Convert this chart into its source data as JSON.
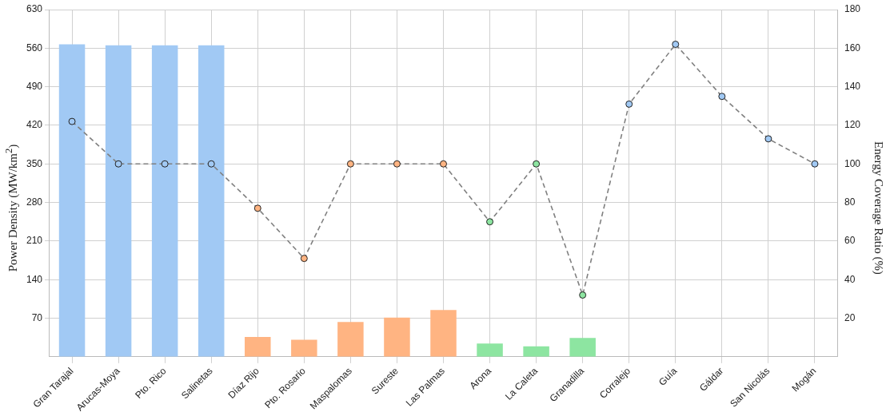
{
  "chart_data": {
    "type": "bar",
    "ylabel": "Power Density (MW/km$^{2}$)",
    "y2label": "Energy Coverage Ratio (%)",
    "categories": [
      "Gran Tarajal",
      "Arucas-Moya",
      "Pto. Rico",
      "Salinetas",
      "Díaz Rijo",
      "Pto. Rosario",
      "Maspalomas",
      "Sureste",
      "Las Palmas",
      "Arona",
      "La Caleta",
      "Granadilla",
      "Corralejo",
      "Guía",
      "Gáldar",
      "San Nicolás",
      "Mogán"
    ],
    "series": [
      {
        "colors": [
          "#a1c9f4",
          "#a1c9f4",
          "#a1c9f4",
          "#a1c9f4",
          "#ffb482",
          "#ffb482",
          "#ffb482",
          "#ffb482",
          "#ffb482",
          "#8de5a1",
          "#8de5a1",
          "#8de5a1",
          "#a1c9f4",
          "#a1c9f4",
          "#a1c9f4",
          "#a1c9f4",
          "#a1c9f4"
        ],
        "values": [
          567,
          565,
          565,
          565,
          36,
          31,
          63,
          71,
          85,
          24,
          19,
          34,
          null,
          null,
          null,
          null,
          null
        ]
      },
      {
        "type": "line",
        "axis": "y2",
        "color": "#808080",
        "colors": [
          "#a1c9f4",
          "#a1c9f4",
          "#a1c9f4",
          "#a1c9f4",
          "#ffb482",
          "#ffb482",
          "#ffb482",
          "#ffb482",
          "#ffb482",
          "#8de5a1",
          "#8de5a1",
          "#8de5a1",
          "#a1c9f4",
          "#a1c9f4",
          "#a1c9f4",
          "#a1c9f4",
          "#a1c9f4"
        ],
        "line_style": "dashed",
        "marker": "circle",
        "values": [
          122,
          100,
          100,
          100,
          77,
          51,
          100,
          100,
          100,
          70,
          100,
          32,
          131,
          162,
          135,
          113,
          100
        ]
      }
    ],
    "ylim": [
      0,
      630
    ],
    "yticks": [
      70,
      140,
      210,
      280,
      350,
      420,
      490,
      560,
      630
    ],
    "y2lim": [
      0,
      180
    ],
    "y2ticks": [
      20,
      40,
      60,
      80,
      100,
      120,
      140,
      160,
      180
    ],
    "grid": true,
    "legend": false
  }
}
